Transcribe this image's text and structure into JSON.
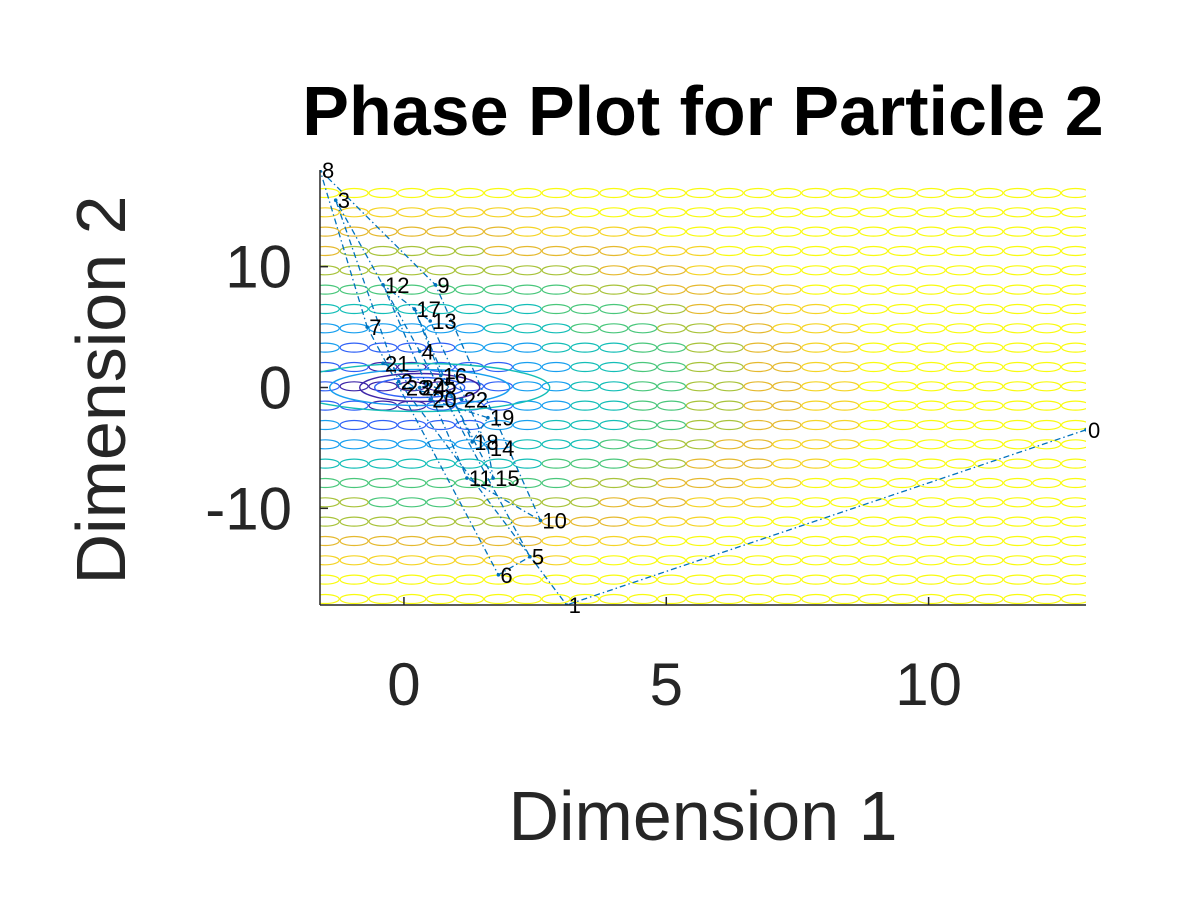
{
  "chart_data": {
    "type": "line",
    "title": "Phase Plot for Particle 2",
    "xlabel": "Dimension 1",
    "ylabel": "Dimension 2",
    "xlim": [
      -1.6,
      13
    ],
    "ylim": [
      -18,
      18
    ],
    "xticks": [
      0,
      5,
      10
    ],
    "yticks": [
      -10,
      0,
      10
    ],
    "grid": false,
    "background": "contour plot of objective function",
    "colors": {
      "trajectory": "#0072BD",
      "contour_low": "#3E26A8",
      "contour_mid": "#13BEB7",
      "contour_high": "#F9FB0E",
      "axes": "#262626"
    },
    "series": [
      {
        "points": [
          {
            "label": "0",
            "x": 13.0,
            "y": -3.5
          },
          {
            "label": "1",
            "x": 3.1,
            "y": -18.0
          },
          {
            "label": "2",
            "x": -0.1,
            "y": 0.5
          },
          {
            "label": "3",
            "x": -1.3,
            "y": 15.5
          },
          {
            "label": "4",
            "x": 0.3,
            "y": 3.0
          },
          {
            "label": "5",
            "x": 2.4,
            "y": -14.0
          },
          {
            "label": "6",
            "x": 1.8,
            "y": -15.5
          },
          {
            "label": "7",
            "x": -0.7,
            "y": 5.0
          },
          {
            "label": "8",
            "x": -1.6,
            "y": 18.0
          },
          {
            "label": "9",
            "x": 0.6,
            "y": 8.5
          },
          {
            "label": "10",
            "x": 2.6,
            "y": -11.0
          },
          {
            "label": "11",
            "x": 1.2,
            "y": -7.5
          },
          {
            "label": "12",
            "x": -0.4,
            "y": 8.5
          },
          {
            "label": "13",
            "x": 0.5,
            "y": 5.5
          },
          {
            "label": "14",
            "x": 1.6,
            "y": -5.0
          },
          {
            "label": "15",
            "x": 1.7,
            "y": -7.5
          },
          {
            "label": "16",
            "x": 0.7,
            "y": 1.0
          },
          {
            "label": "17",
            "x": 0.2,
            "y": 6.5
          },
          {
            "label": "18",
            "x": 1.3,
            "y": -4.5
          },
          {
            "label": "19",
            "x": 1.6,
            "y": -2.5
          },
          {
            "label": "20",
            "x": 0.5,
            "y": -1.0
          },
          {
            "label": "21",
            "x": -0.4,
            "y": 2.0
          },
          {
            "label": "22",
            "x": 1.1,
            "y": -1.0
          },
          {
            "label": "23",
            "x": 0.0,
            "y": 0.0
          },
          {
            "label": "24",
            "x": 0.3,
            "y": 0.0
          },
          {
            "label": "25",
            "x": 0.5,
            "y": 0.2
          }
        ]
      }
    ]
  }
}
